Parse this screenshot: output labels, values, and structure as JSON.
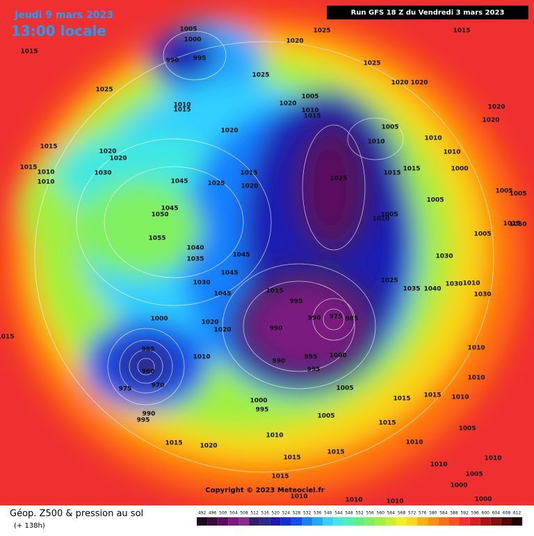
{
  "header": {
    "date": "Jeudi 9 mars 2023",
    "time": "13:00 locale",
    "run": "Run GFS 18 Z du Vendredi 3 mars 2023"
  },
  "map": {
    "pressure_labels": [
      1005,
      1000,
      990,
      995,
      1025,
      1015,
      1015,
      1020,
      1025,
      1025,
      1025,
      1020,
      1020,
      1005,
      1020,
      1010,
      1015,
      1010,
      1015,
      1020,
      1020,
      1005,
      1020,
      1010,
      1010,
      1015,
      1020,
      1020,
      1010,
      1015,
      1010,
      1030,
      1000,
      1010,
      1015,
      1015,
      1015,
      1045,
      1025,
      1020,
      1025,
      1005,
      1005,
      1005,
      1045,
      1050,
      1005,
      1010,
      1015,
      1050,
      1005,
      1055,
      1040,
      1045,
      1035,
      1030,
      1045,
      1025,
      1035,
      1040,
      1030,
      1010,
      1030,
      1015,
      1045,
      1030,
      995,
      1000,
      990,
      975,
      985,
      990,
      1020,
      1020,
      1015,
      985,
      1010,
      1010,
      990,
      995,
      1000,
      995,
      960,
      975,
      970,
      1005,
      1010,
      1015,
      1015,
      1010,
      1000,
      995,
      990,
      995,
      1005,
      1015,
      1005,
      1010,
      1015,
      1020,
      1010,
      1015,
      1015,
      1010,
      1010,
      1005,
      1015,
      1000,
      1010,
      1010,
      1010,
      1000
    ]
  },
  "copyright": "Copyright © 2023 Meteociel.fr",
  "footer": {
    "title": "Géop. Z500 & pression au sol",
    "lead": "(+ 138h)"
  },
  "scale": {
    "values": [
      492,
      496,
      500,
      504,
      508,
      512,
      516,
      520,
      524,
      528,
      532,
      536,
      540,
      544,
      548,
      552,
      556,
      560,
      564,
      568,
      572,
      576,
      580,
      584,
      588,
      592,
      596,
      600,
      604,
      608,
      612
    ],
    "colors": [
      "#1a0a1f",
      "#3a0a3f",
      "#5a0a5f",
      "#7a1a7f",
      "#8a2a8f",
      "#30206a",
      "#2a2a8a",
      "#1a1ab0",
      "#1030d0",
      "#1050f0",
      "#1880ff",
      "#20a8ff",
      "#30d0ff",
      "#40e8e0",
      "#50f0b0",
      "#60f080",
      "#80f060",
      "#a0f040",
      "#c8f030",
      "#f0f020",
      "#f8d818",
      "#ffb010",
      "#ff9010",
      "#ff7010",
      "#ff5020",
      "#f03030",
      "#d82020",
      "#b01010",
      "#801010",
      "#500808",
      "#200000"
    ]
  }
}
